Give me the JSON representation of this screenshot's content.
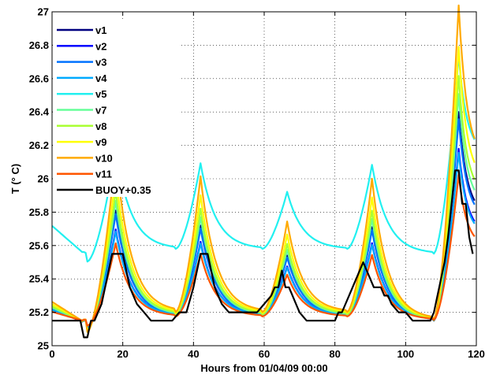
{
  "chart_data": {
    "type": "line",
    "title": "",
    "xlabel": "Hours from 01/04/09 00:00",
    "ylabel": "T (° C)",
    "xlim": [
      0,
      120
    ],
    "ylim": [
      25,
      27
    ],
    "xticks": [
      0,
      20,
      40,
      60,
      80,
      100,
      120
    ],
    "yticks": [
      25,
      25.2,
      25.4,
      25.6,
      25.8,
      26,
      26.2,
      26.4,
      26.6,
      26.8,
      27
    ],
    "xtick_labels": [
      "0",
      "20",
      "40",
      "60",
      "80",
      "100",
      "120"
    ],
    "ytick_labels": [
      "25",
      "25.2",
      "25.4",
      "25.6",
      "25.8",
      "26",
      "26.2",
      "26.4",
      "26.6",
      "26.8",
      "27"
    ],
    "grid": true,
    "legend_position": "top-left",
    "legend": [
      "v1",
      "v2",
      "v3",
      "v4",
      "v5",
      "v7",
      "v8",
      "v9",
      "v10",
      "v11",
      "BUOY+0.35"
    ],
    "series": [
      {
        "name": "v1",
        "color": "#000080",
        "kind": "model",
        "offset": 0.0,
        "amp": 1.0
      },
      {
        "name": "v2",
        "color": "#0000ff",
        "kind": "model",
        "offset": 0.0,
        "amp": 0.82
      },
      {
        "name": "v3",
        "color": "#0072ff",
        "kind": "model",
        "offset": 0.01,
        "amp": 0.95
      },
      {
        "name": "v4",
        "color": "#00aaff",
        "kind": "model",
        "offset": 0.0,
        "amp": 0.8
      },
      {
        "name": "v5",
        "color": "#22f0f0",
        "kind": "v5"
      },
      {
        "name": "v7",
        "color": "#66ff99",
        "kind": "model",
        "offset": 0.02,
        "amp": 1.06
      },
      {
        "name": "v8",
        "color": "#aaff33",
        "kind": "model",
        "offset": 0.04,
        "amp": 1.12
      },
      {
        "name": "v9",
        "color": "#ffff00",
        "kind": "model",
        "offset": 0.07,
        "amp": 1.22
      },
      {
        "name": "v10",
        "color": "#ffaa00",
        "kind": "model",
        "offset": 0.1,
        "amp": 1.38
      },
      {
        "name": "v11",
        "color": "#ff5500",
        "kind": "model",
        "offset": -0.02,
        "amp": 0.72
      },
      {
        "name": "BUOY+0.35",
        "color": "#000000",
        "kind": "buoy",
        "x": [
          0,
          8,
          9,
          10,
          11,
          12,
          13,
          14,
          15,
          16,
          17,
          18,
          20,
          21,
          22,
          23,
          24,
          26,
          28,
          34,
          36,
          38,
          40,
          41,
          42,
          44,
          45,
          46,
          47,
          48,
          50,
          52,
          56,
          58,
          60,
          62,
          63,
          64,
          65,
          66,
          67,
          68,
          69,
          70,
          72,
          76,
          80,
          81,
          82,
          83,
          84,
          85,
          86,
          87,
          88,
          89,
          90,
          91,
          92,
          93,
          94,
          95,
          96,
          98,
          100,
          102,
          104,
          106,
          107,
          108,
          109,
          110,
          111,
          112,
          113,
          114,
          115,
          116,
          117,
          118,
          119
        ],
        "y": [
          25.15,
          25.15,
          25.05,
          25.05,
          25.15,
          25.15,
          25.2,
          25.25,
          25.35,
          25.45,
          25.55,
          25.55,
          25.55,
          25.45,
          25.35,
          25.3,
          25.25,
          25.2,
          25.15,
          25.15,
          25.2,
          25.2,
          25.35,
          25.45,
          25.55,
          25.55,
          25.45,
          25.35,
          25.3,
          25.25,
          25.2,
          25.2,
          25.2,
          25.2,
          25.25,
          25.3,
          25.35,
          25.35,
          25.45,
          25.35,
          25.35,
          25.3,
          25.25,
          25.2,
          25.15,
          25.15,
          25.15,
          25.2,
          25.2,
          25.25,
          25.3,
          25.35,
          25.4,
          25.45,
          25.5,
          25.45,
          25.4,
          25.35,
          25.35,
          25.35,
          25.3,
          25.3,
          25.25,
          25.2,
          25.2,
          25.15,
          25.15,
          25.15,
          25.15,
          25.2,
          25.3,
          25.4,
          25.5,
          25.65,
          25.85,
          26.05,
          26.05,
          25.85,
          25.85,
          25.65,
          25.55
        ]
      }
    ]
  }
}
